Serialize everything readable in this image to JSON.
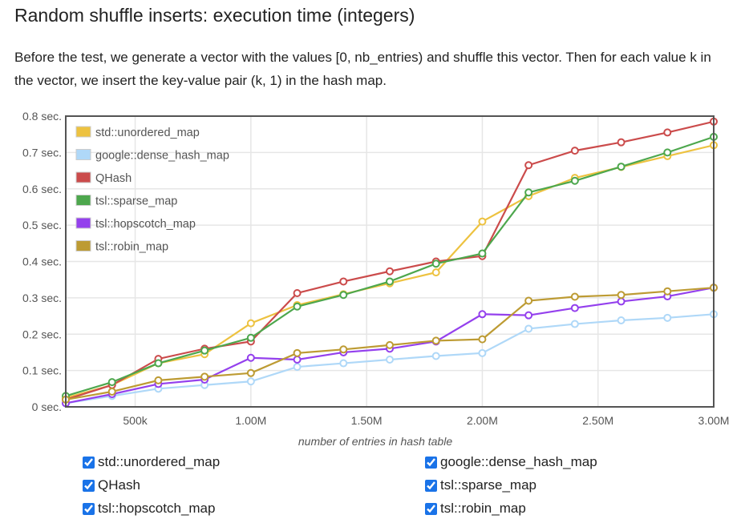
{
  "title": "Random shuffle inserts: execution time (integers)",
  "description": "Before the test, we generate a vector with the values [0, nb_entries) and shuffle this vector. Then for each value k in the vector, we insert the key-value pair (k, 1) in the hash map.",
  "chart_data": {
    "type": "line",
    "title": "Random shuffle inserts: execution time (integers)",
    "xlabel": "number of entries in hash table",
    "ylabel": "",
    "x": [
      200000,
      400000,
      600000,
      800000,
      1000000,
      1200000,
      1400000,
      1600000,
      1800000,
      2000000,
      2200000,
      2400000,
      2600000,
      2800000,
      3000000
    ],
    "xlim": [
      200000,
      3000000
    ],
    "ylim": [
      0,
      0.8
    ],
    "x_ticks": [
      {
        "value": 500000,
        "label": "500k"
      },
      {
        "value": 1000000,
        "label": "1.00M"
      },
      {
        "value": 1500000,
        "label": "1.50M"
      },
      {
        "value": 2000000,
        "label": "2.00M"
      },
      {
        "value": 2500000,
        "label": "2.50M"
      },
      {
        "value": 3000000,
        "label": "3.00M"
      }
    ],
    "y_ticks": [
      {
        "value": 0,
        "label": "0 sec."
      },
      {
        "value": 0.1,
        "label": "0.1 sec."
      },
      {
        "value": 0.2,
        "label": "0.2 sec."
      },
      {
        "value": 0.3,
        "label": "0.3 sec."
      },
      {
        "value": 0.4,
        "label": "0.4 sec."
      },
      {
        "value": 0.5,
        "label": "0.5 sec."
      },
      {
        "value": 0.6,
        "label": "0.6 sec."
      },
      {
        "value": 0.7,
        "label": "0.7 sec."
      },
      {
        "value": 0.8,
        "label": "0.8 sec."
      }
    ],
    "grid": true,
    "legend_position": "top-left",
    "series": [
      {
        "name": "std::unordered_map",
        "color": "#edc240",
        "values": [
          0.025,
          0.06,
          0.12,
          0.145,
          0.23,
          0.28,
          0.31,
          0.34,
          0.37,
          0.51,
          0.58,
          0.63,
          0.66,
          0.69,
          0.72
        ]
      },
      {
        "name": "google::dense_hash_map",
        "color": "#afd8f8",
        "values": [
          0.01,
          0.03,
          0.05,
          0.06,
          0.07,
          0.11,
          0.12,
          0.13,
          0.14,
          0.148,
          0.215,
          0.228,
          0.238,
          0.245,
          0.255
        ]
      },
      {
        "name": "QHash",
        "color": "#cb4b4b",
        "values": [
          0.02,
          0.06,
          0.132,
          0.16,
          0.18,
          0.313,
          0.345,
          0.373,
          0.4,
          0.415,
          0.665,
          0.705,
          0.728,
          0.755,
          0.785
        ]
      },
      {
        "name": "tsl::sparse_map",
        "color": "#4da74d",
        "values": [
          0.03,
          0.068,
          0.12,
          0.155,
          0.19,
          0.276,
          0.308,
          0.345,
          0.394,
          0.422,
          0.59,
          0.622,
          0.661,
          0.7,
          0.743
        ]
      },
      {
        "name": "tsl::hopscotch_map",
        "color": "#9440ed",
        "values": [
          0.01,
          0.035,
          0.063,
          0.075,
          0.135,
          0.13,
          0.15,
          0.16,
          0.18,
          0.255,
          0.252,
          0.272,
          0.29,
          0.304,
          0.328
        ]
      },
      {
        "name": "tsl::robin_map",
        "color": "#bd9b33",
        "values": [
          0.02,
          0.042,
          0.073,
          0.083,
          0.093,
          0.148,
          0.158,
          0.17,
          0.182,
          0.186,
          0.292,
          0.303,
          0.308,
          0.318,
          0.328
        ]
      }
    ]
  },
  "toggles": [
    {
      "label": "std::unordered_map",
      "checked": true
    },
    {
      "label": "google::dense_hash_map",
      "checked": true
    },
    {
      "label": "QHash",
      "checked": true
    },
    {
      "label": "tsl::sparse_map",
      "checked": true
    },
    {
      "label": "tsl::hopscotch_map",
      "checked": true
    },
    {
      "label": "tsl::robin_map",
      "checked": true
    }
  ]
}
